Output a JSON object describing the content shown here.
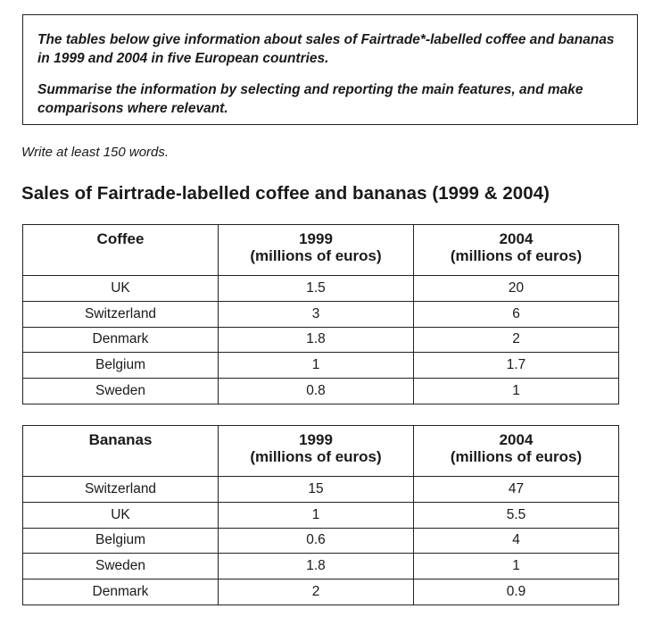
{
  "task": {
    "paragraph1": "The tables below give information about sales of Fairtrade*-labelled coffee and bananas in 1999 and 2004 in five European countries.",
    "paragraph2": "Summarise the information by selecting and reporting the main features, and make comparisons where relevant."
  },
  "word_count_note": "Write at least 150 words.",
  "heading": "Sales of Fairtrade-labelled coffee and bananas (1999 & 2004)",
  "tables": {
    "coffee": {
      "product": "Coffee",
      "col_1999": "1999",
      "col_2004": "2004",
      "units": "(millions of euros)",
      "rows": [
        {
          "country": "UK",
          "v1999": "1.5",
          "v2004": "20"
        },
        {
          "country": "Switzerland",
          "v1999": "3",
          "v2004": "6"
        },
        {
          "country": "Denmark",
          "v1999": "1.8",
          "v2004": "2"
        },
        {
          "country": "Belgium",
          "v1999": "1",
          "v2004": "1.7"
        },
        {
          "country": "Sweden",
          "v1999": "0.8",
          "v2004": "1"
        }
      ]
    },
    "bananas": {
      "product": "Bananas",
      "col_1999": "1999",
      "col_2004": "2004",
      "units": "(millions of euros)",
      "rows": [
        {
          "country": "Switzerland",
          "v1999": "15",
          "v2004": "47"
        },
        {
          "country": "UK",
          "v1999": "1",
          "v2004": "5.5"
        },
        {
          "country": "Belgium",
          "v1999": "0.6",
          "v2004": "4"
        },
        {
          "country": "Sweden",
          "v1999": "1.8",
          "v2004": "1"
        },
        {
          "country": "Denmark",
          "v1999": "2",
          "v2004": "0.9"
        }
      ]
    }
  }
}
